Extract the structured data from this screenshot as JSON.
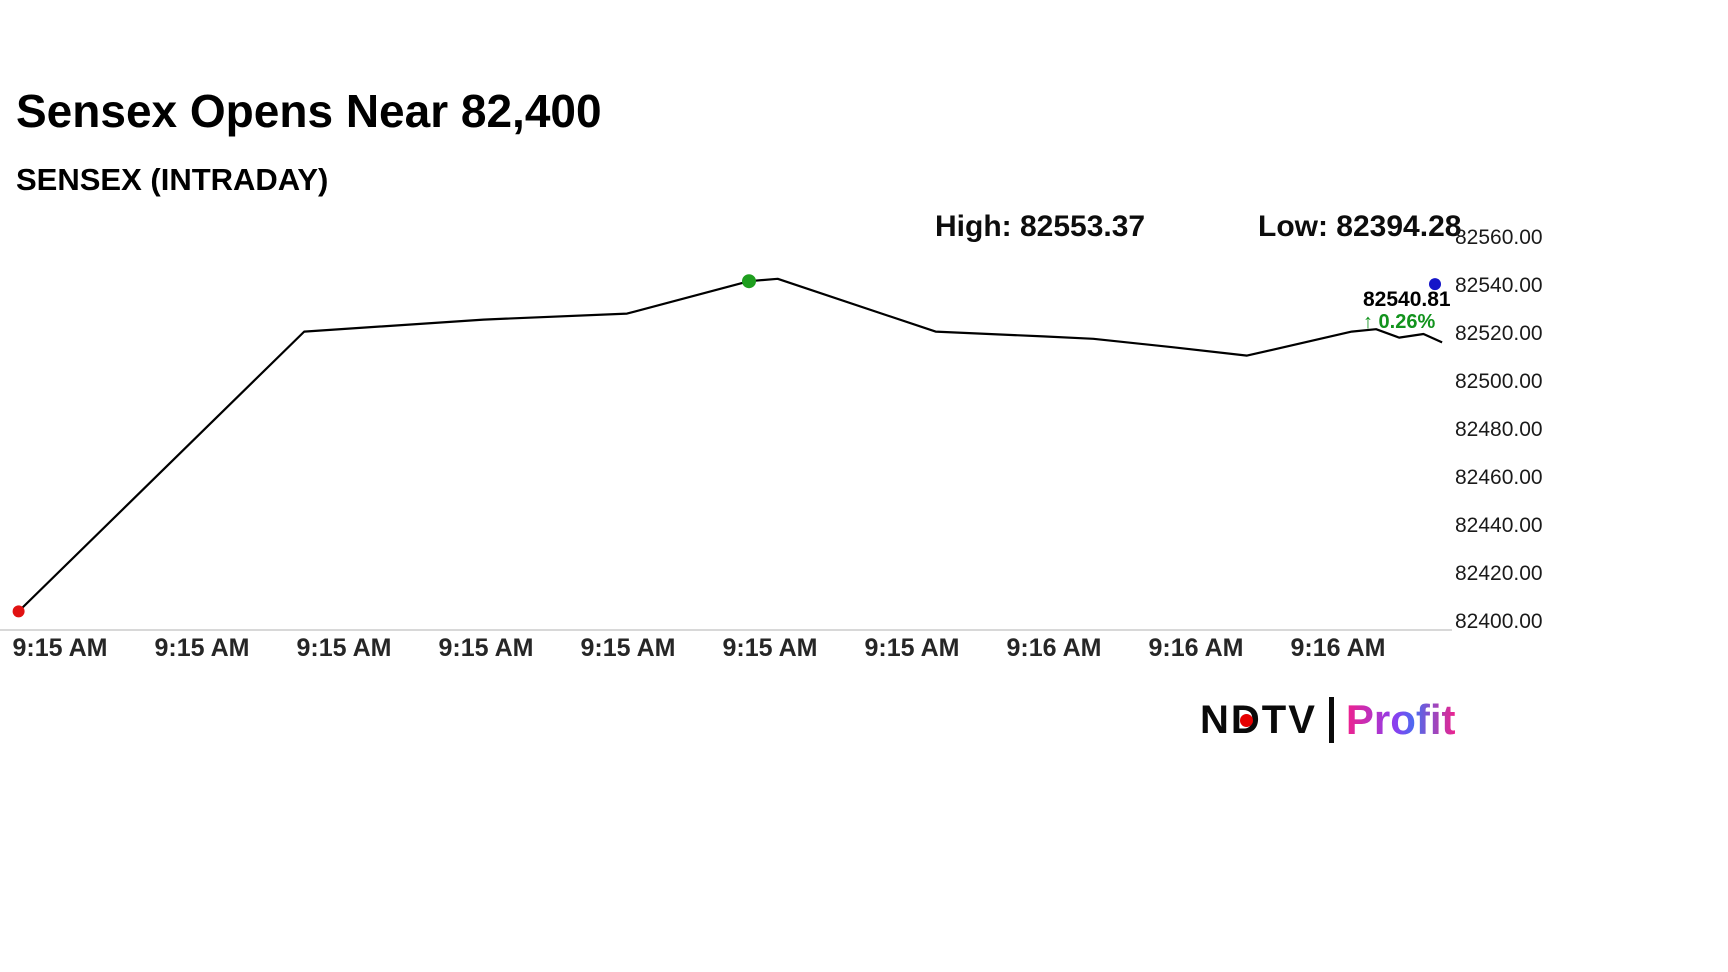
{
  "header": {
    "title": "Sensex Opens Near 82,400",
    "subtitle": "SENSEX (INTRADAY)"
  },
  "stats": {
    "high": "High: 82553.37",
    "low": "Low: 82394.28"
  },
  "last_quote": {
    "price": "82540.81",
    "change": "↑ 0.26%"
  },
  "logo": {
    "ndtv": "NDTV",
    "profit": "Profit",
    "dot_color": "#e60000"
  },
  "chart_data": {
    "type": "line",
    "title": "SENSEX (INTRADAY)",
    "ylim": [
      82400,
      82560
    ],
    "high": 82553.37,
    "low": 82394.28,
    "last": 82540.81,
    "change_pct": 0.26,
    "line_color": "#000000",
    "axis_color": "#d8d8d8",
    "grid": false,
    "legend": "none",
    "y_axis_side": "right",
    "y_ticks": [
      {
        "value": 82560,
        "label": "82560.00"
      },
      {
        "value": 82540,
        "label": "82540.00"
      },
      {
        "value": 82520,
        "label": "82520.00"
      },
      {
        "value": 82500,
        "label": "82500.00"
      },
      {
        "value": 82480,
        "label": "82480.00"
      },
      {
        "value": 82460,
        "label": "82460.00"
      },
      {
        "value": 82440,
        "label": "82440.00"
      },
      {
        "value": 82420,
        "label": "82420.00"
      },
      {
        "value": 82400,
        "label": "82400.00"
      }
    ],
    "x_ticks": [
      "9:15 AM",
      "9:15 AM",
      "9:15 AM",
      "9:15 AM",
      "9:15 AM",
      "9:15 AM",
      "9:15 AM",
      "9:16 AM",
      "9:16 AM",
      "9:16 AM"
    ],
    "points": [
      {
        "x": 0.006,
        "y": 82404.4
      },
      {
        "x": 0.205,
        "y": 82521.0
      },
      {
        "x": 0.33,
        "y": 82526.0
      },
      {
        "x": 0.43,
        "y": 82528.5
      },
      {
        "x": 0.515,
        "y": 82542.0
      },
      {
        "x": 0.535,
        "y": 82543.0
      },
      {
        "x": 0.645,
        "y": 82521.0
      },
      {
        "x": 0.72,
        "y": 82519.0
      },
      {
        "x": 0.755,
        "y": 82518.0
      },
      {
        "x": 0.81,
        "y": 82514.5
      },
      {
        "x": 0.862,
        "y": 82511.0
      },
      {
        "x": 0.935,
        "y": 82521.0
      },
      {
        "x": 0.952,
        "y": 82522.0
      },
      {
        "x": 0.968,
        "y": 82518.5
      },
      {
        "x": 0.985,
        "y": 82520.0
      },
      {
        "x": 0.998,
        "y": 82516.5
      }
    ],
    "markers": [
      {
        "x": 0.006,
        "value": 82404.4,
        "color": "#e11212",
        "r": 6,
        "name": "open-marker"
      },
      {
        "x": 0.515,
        "value": 82542.0,
        "color": "#1e9e1e",
        "r": 7,
        "name": "high-marker"
      },
      {
        "x": 0.993,
        "value": 82540.81,
        "color": "#1515c8",
        "r": 6,
        "name": "last-marker"
      }
    ]
  }
}
